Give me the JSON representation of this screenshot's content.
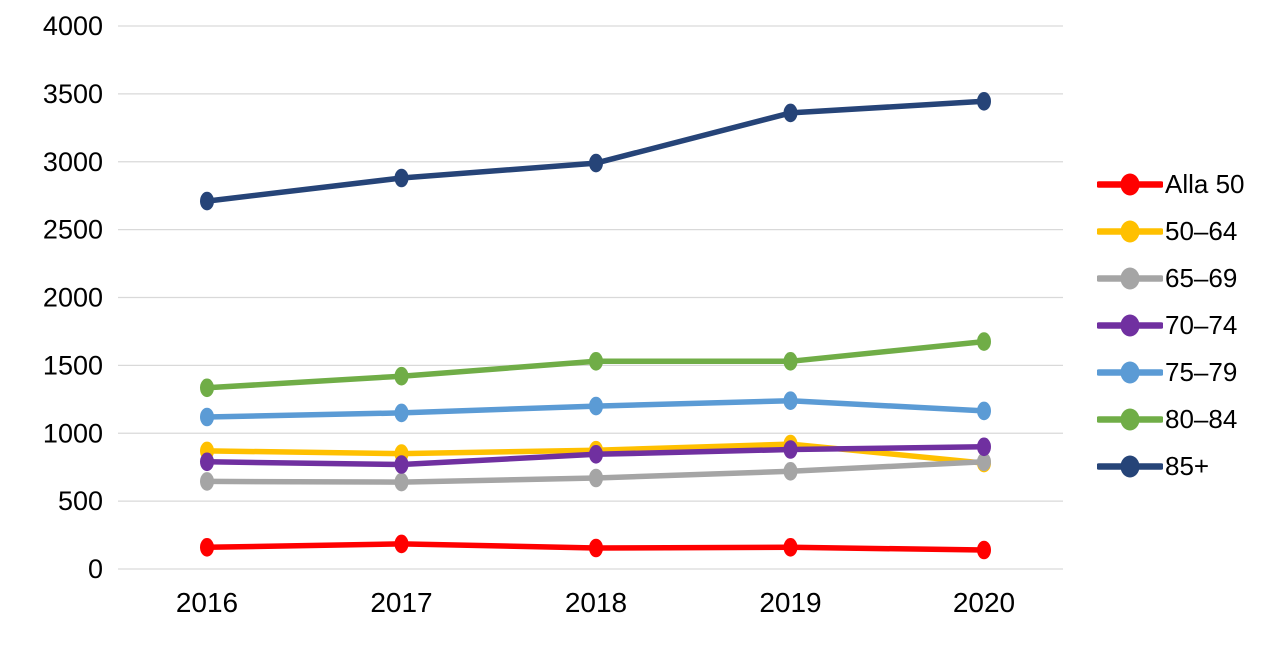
{
  "page": {
    "background": "#ffffff",
    "text_color": "#000000",
    "gridline_color": "#d9d9d9"
  },
  "chart_data": {
    "type": "line",
    "title": "",
    "xlabel": "",
    "ylabel": "",
    "x": [
      2016,
      2017,
      2018,
      2019,
      2020
    ],
    "xticks": [
      "2016",
      "2017",
      "2018",
      "2019",
      "2020"
    ],
    "yticks": [
      "0",
      "500",
      "1000",
      "1500",
      "2000",
      "2500",
      "3000",
      "3500",
      "4000"
    ],
    "ylim": [
      0,
      4000
    ],
    "ytick_step": 500,
    "grid": true,
    "legend_position": "right",
    "marker": "circle",
    "series": [
      {
        "name": "Alla 50",
        "color": "#ff0000",
        "values": [
          160,
          185,
          155,
          160,
          140
        ]
      },
      {
        "name": "50–64",
        "color": "#ffc000",
        "values": [
          870,
          850,
          875,
          920,
          780
        ]
      },
      {
        "name": "65–69",
        "color": "#a5a5a5",
        "values": [
          645,
          640,
          670,
          720,
          790
        ]
      },
      {
        "name": "70–74",
        "color": "#7030a0",
        "values": [
          790,
          770,
          845,
          880,
          900
        ]
      },
      {
        "name": "75–79",
        "color": "#5b9bd5",
        "values": [
          1120,
          1150,
          1200,
          1240,
          1165
        ]
      },
      {
        "name": "80–84",
        "color": "#70ad47",
        "values": [
          1335,
          1420,
          1530,
          1530,
          1675
        ]
      },
      {
        "name": "85+",
        "color": "#264478",
        "values": [
          2710,
          2880,
          2990,
          3360,
          3445
        ]
      }
    ]
  }
}
